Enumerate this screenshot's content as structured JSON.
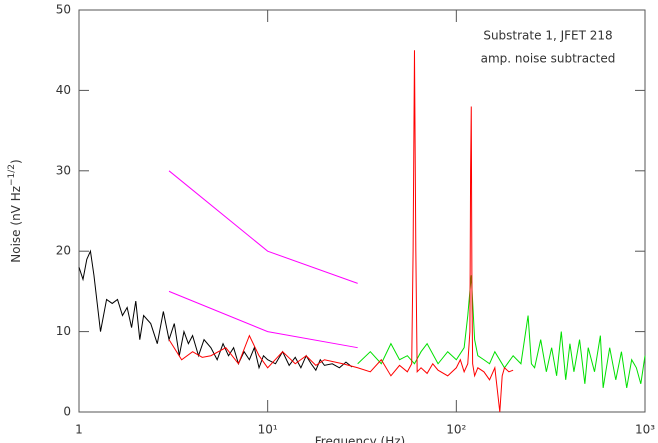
{
  "chart_data": {
    "type": "line",
    "log_x": true,
    "xlabel": "Frequency (Hz)",
    "ylabel": {
      "base": "Noise (nV Hz",
      "exponent": "−1/2",
      "close": ")"
    },
    "annotations": [
      "Substrate 1, JFET 218",
      "amp. noise subtracted"
    ],
    "xlim": [
      1,
      1000
    ],
    "xticks": [
      1,
      {
        "value": 10,
        "label": "10¹"
      },
      {
        "value": 100,
        "label": "10²"
      },
      {
        "value": 1000,
        "label": "10³"
      }
    ],
    "ylim": [
      0,
      50
    ],
    "yticks": [
      0,
      10,
      20,
      30,
      40,
      50
    ],
    "series": [
      {
        "color": "#000000",
        "x": [
          1,
          1.05,
          1.1,
          1.15,
          1.2,
          1.3,
          1.4,
          1.5,
          1.6,
          1.7,
          1.8,
          1.9,
          2,
          2.1,
          2.2,
          2.4,
          2.6,
          2.8,
          3,
          3.2,
          3.4,
          3.6,
          3.8,
          4,
          4.3,
          4.6,
          5,
          5.4,
          5.8,
          6.2,
          6.6,
          7,
          7.5,
          8,
          8.5,
          9,
          9.5,
          10,
          11,
          12,
          13,
          14,
          15,
          16,
          17,
          18,
          19,
          20,
          22,
          24,
          26,
          28
        ],
        "values": [
          18,
          16.5,
          19,
          20,
          17,
          10,
          14,
          13.5,
          14,
          12,
          13,
          10.5,
          13.8,
          9,
          12,
          11,
          8.5,
          12.5,
          9,
          11,
          7,
          10,
          8.5,
          9.5,
          7,
          9,
          8,
          6.5,
          8.5,
          7,
          8,
          6,
          7.5,
          6.5,
          8,
          5.5,
          7,
          6.5,
          6,
          7.5,
          5.8,
          6.8,
          5.5,
          7,
          6,
          5.2,
          6.5,
          5.8,
          6,
          5.5,
          6.2,
          5.6
        ]
      },
      {
        "color": "#00e000",
        "x": [
          30,
          35,
          40,
          45,
          50,
          55,
          60,
          65,
          70,
          80,
          90,
          100,
          110,
          115,
          120,
          125,
          130,
          140,
          150,
          160,
          180,
          200,
          220,
          240,
          250,
          260,
          280,
          300,
          320,
          340,
          360,
          380,
          400,
          420,
          450,
          480,
          500,
          540,
          580,
          600,
          650,
          700,
          750,
          800,
          850,
          900,
          950,
          1000
        ],
        "values": [
          6,
          7.5,
          6,
          8.5,
          6.5,
          7,
          6,
          7.5,
          8.5,
          6,
          7.5,
          6.5,
          8,
          12,
          17,
          9,
          7,
          6.5,
          6,
          7.5,
          5.5,
          7,
          6,
          12,
          6,
          5.5,
          9,
          5,
          8,
          4.5,
          10,
          4,
          8.5,
          5,
          9,
          3.5,
          8,
          5,
          9.5,
          3,
          8,
          4,
          7.5,
          3,
          6.5,
          5.5,
          3.5,
          7
        ]
      },
      {
        "color": "#ff0000",
        "x": [
          3,
          3.5,
          4,
          4.5,
          5,
          6,
          7,
          8,
          9,
          10,
          12,
          14,
          16,
          18,
          20,
          25,
          30,
          35,
          40,
          45,
          50,
          55,
          58,
          59,
          60,
          61,
          62,
          65,
          70,
          75,
          80,
          90,
          100,
          105,
          110,
          115,
          118,
          119,
          120,
          121,
          122,
          125,
          130,
          140,
          150,
          160,
          170,
          175,
          180,
          190,
          200
        ],
        "values": [
          9,
          6.5,
          7.5,
          6.8,
          7,
          8,
          6,
          9.5,
          7,
          5.5,
          7.5,
          6,
          7,
          5.8,
          6.5,
          6,
          5.5,
          5,
          6.5,
          4.5,
          5.8,
          5,
          6,
          20,
          45,
          20,
          5,
          5.5,
          4.8,
          6,
          5.2,
          4.5,
          5.5,
          6.5,
          5,
          6,
          10,
          30,
          38,
          15,
          6,
          4.5,
          5.5,
          5,
          4,
          5.5,
          0,
          4.5,
          5.5,
          5,
          5.2
        ]
      },
      {
        "color": "#ff00ff",
        "x": [
          3,
          10,
          30
        ],
        "values": [
          30,
          20,
          16
        ]
      },
      {
        "color": "#ff00ff",
        "x": [
          3,
          10,
          30
        ],
        "values": [
          15,
          10,
          8
        ]
      }
    ]
  }
}
